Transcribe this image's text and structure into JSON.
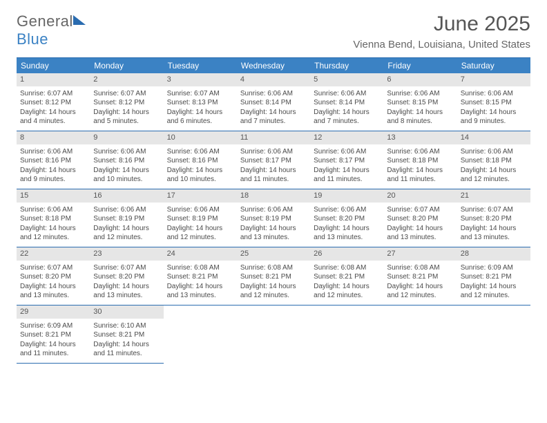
{
  "header": {
    "brand_part1": "General",
    "brand_part2": "Blue",
    "month_title": "June 2025",
    "location": "Vienna Bend, Louisiana, United States"
  },
  "style": {
    "accent_color": "#3b82c4",
    "border_color": "#2a6cb0",
    "header_bg": "#3b82c4",
    "header_text": "#ffffff",
    "datenum_bg": "#e6e6e6",
    "text_color": "#4a4a4a",
    "title_color": "#555555",
    "location_color": "#666666",
    "title_fontsize": 30,
    "location_fontsize": 15,
    "cell_fontsize": 10,
    "day_header_fontsize": 12
  },
  "weekdays": [
    "Sunday",
    "Monday",
    "Tuesday",
    "Wednesday",
    "Thursday",
    "Friday",
    "Saturday"
  ],
  "days": [
    {
      "n": "1",
      "sunrise": "Sunrise: 6:07 AM",
      "sunset": "Sunset: 8:12 PM",
      "day1": "Daylight: 14 hours",
      "day2": "and 4 minutes."
    },
    {
      "n": "2",
      "sunrise": "Sunrise: 6:07 AM",
      "sunset": "Sunset: 8:12 PM",
      "day1": "Daylight: 14 hours",
      "day2": "and 5 minutes."
    },
    {
      "n": "3",
      "sunrise": "Sunrise: 6:07 AM",
      "sunset": "Sunset: 8:13 PM",
      "day1": "Daylight: 14 hours",
      "day2": "and 6 minutes."
    },
    {
      "n": "4",
      "sunrise": "Sunrise: 6:06 AM",
      "sunset": "Sunset: 8:14 PM",
      "day1": "Daylight: 14 hours",
      "day2": "and 7 minutes."
    },
    {
      "n": "5",
      "sunrise": "Sunrise: 6:06 AM",
      "sunset": "Sunset: 8:14 PM",
      "day1": "Daylight: 14 hours",
      "day2": "and 7 minutes."
    },
    {
      "n": "6",
      "sunrise": "Sunrise: 6:06 AM",
      "sunset": "Sunset: 8:15 PM",
      "day1": "Daylight: 14 hours",
      "day2": "and 8 minutes."
    },
    {
      "n": "7",
      "sunrise": "Sunrise: 6:06 AM",
      "sunset": "Sunset: 8:15 PM",
      "day1": "Daylight: 14 hours",
      "day2": "and 9 minutes."
    },
    {
      "n": "8",
      "sunrise": "Sunrise: 6:06 AM",
      "sunset": "Sunset: 8:16 PM",
      "day1": "Daylight: 14 hours",
      "day2": "and 9 minutes."
    },
    {
      "n": "9",
      "sunrise": "Sunrise: 6:06 AM",
      "sunset": "Sunset: 8:16 PM",
      "day1": "Daylight: 14 hours",
      "day2": "and 10 minutes."
    },
    {
      "n": "10",
      "sunrise": "Sunrise: 6:06 AM",
      "sunset": "Sunset: 8:16 PM",
      "day1": "Daylight: 14 hours",
      "day2": "and 10 minutes."
    },
    {
      "n": "11",
      "sunrise": "Sunrise: 6:06 AM",
      "sunset": "Sunset: 8:17 PM",
      "day1": "Daylight: 14 hours",
      "day2": "and 11 minutes."
    },
    {
      "n": "12",
      "sunrise": "Sunrise: 6:06 AM",
      "sunset": "Sunset: 8:17 PM",
      "day1": "Daylight: 14 hours",
      "day2": "and 11 minutes."
    },
    {
      "n": "13",
      "sunrise": "Sunrise: 6:06 AM",
      "sunset": "Sunset: 8:18 PM",
      "day1": "Daylight: 14 hours",
      "day2": "and 11 minutes."
    },
    {
      "n": "14",
      "sunrise": "Sunrise: 6:06 AM",
      "sunset": "Sunset: 8:18 PM",
      "day1": "Daylight: 14 hours",
      "day2": "and 12 minutes."
    },
    {
      "n": "15",
      "sunrise": "Sunrise: 6:06 AM",
      "sunset": "Sunset: 8:18 PM",
      "day1": "Daylight: 14 hours",
      "day2": "and 12 minutes."
    },
    {
      "n": "16",
      "sunrise": "Sunrise: 6:06 AM",
      "sunset": "Sunset: 8:19 PM",
      "day1": "Daylight: 14 hours",
      "day2": "and 12 minutes."
    },
    {
      "n": "17",
      "sunrise": "Sunrise: 6:06 AM",
      "sunset": "Sunset: 8:19 PM",
      "day1": "Daylight: 14 hours",
      "day2": "and 12 minutes."
    },
    {
      "n": "18",
      "sunrise": "Sunrise: 6:06 AM",
      "sunset": "Sunset: 8:19 PM",
      "day1": "Daylight: 14 hours",
      "day2": "and 13 minutes."
    },
    {
      "n": "19",
      "sunrise": "Sunrise: 6:06 AM",
      "sunset": "Sunset: 8:20 PM",
      "day1": "Daylight: 14 hours",
      "day2": "and 13 minutes."
    },
    {
      "n": "20",
      "sunrise": "Sunrise: 6:07 AM",
      "sunset": "Sunset: 8:20 PM",
      "day1": "Daylight: 14 hours",
      "day2": "and 13 minutes."
    },
    {
      "n": "21",
      "sunrise": "Sunrise: 6:07 AM",
      "sunset": "Sunset: 8:20 PM",
      "day1": "Daylight: 14 hours",
      "day2": "and 13 minutes."
    },
    {
      "n": "22",
      "sunrise": "Sunrise: 6:07 AM",
      "sunset": "Sunset: 8:20 PM",
      "day1": "Daylight: 14 hours",
      "day2": "and 13 minutes."
    },
    {
      "n": "23",
      "sunrise": "Sunrise: 6:07 AM",
      "sunset": "Sunset: 8:20 PM",
      "day1": "Daylight: 14 hours",
      "day2": "and 13 minutes."
    },
    {
      "n": "24",
      "sunrise": "Sunrise: 6:08 AM",
      "sunset": "Sunset: 8:21 PM",
      "day1": "Daylight: 14 hours",
      "day2": "and 13 minutes."
    },
    {
      "n": "25",
      "sunrise": "Sunrise: 6:08 AM",
      "sunset": "Sunset: 8:21 PM",
      "day1": "Daylight: 14 hours",
      "day2": "and 12 minutes."
    },
    {
      "n": "26",
      "sunrise": "Sunrise: 6:08 AM",
      "sunset": "Sunset: 8:21 PM",
      "day1": "Daylight: 14 hours",
      "day2": "and 12 minutes."
    },
    {
      "n": "27",
      "sunrise": "Sunrise: 6:08 AM",
      "sunset": "Sunset: 8:21 PM",
      "day1": "Daylight: 14 hours",
      "day2": "and 12 minutes."
    },
    {
      "n": "28",
      "sunrise": "Sunrise: 6:09 AM",
      "sunset": "Sunset: 8:21 PM",
      "day1": "Daylight: 14 hours",
      "day2": "and 12 minutes."
    },
    {
      "n": "29",
      "sunrise": "Sunrise: 6:09 AM",
      "sunset": "Sunset: 8:21 PM",
      "day1": "Daylight: 14 hours",
      "day2": "and 11 minutes."
    },
    {
      "n": "30",
      "sunrise": "Sunrise: 6:10 AM",
      "sunset": "Sunset: 8:21 PM",
      "day1": "Daylight: 14 hours",
      "day2": "and 11 minutes."
    }
  ]
}
